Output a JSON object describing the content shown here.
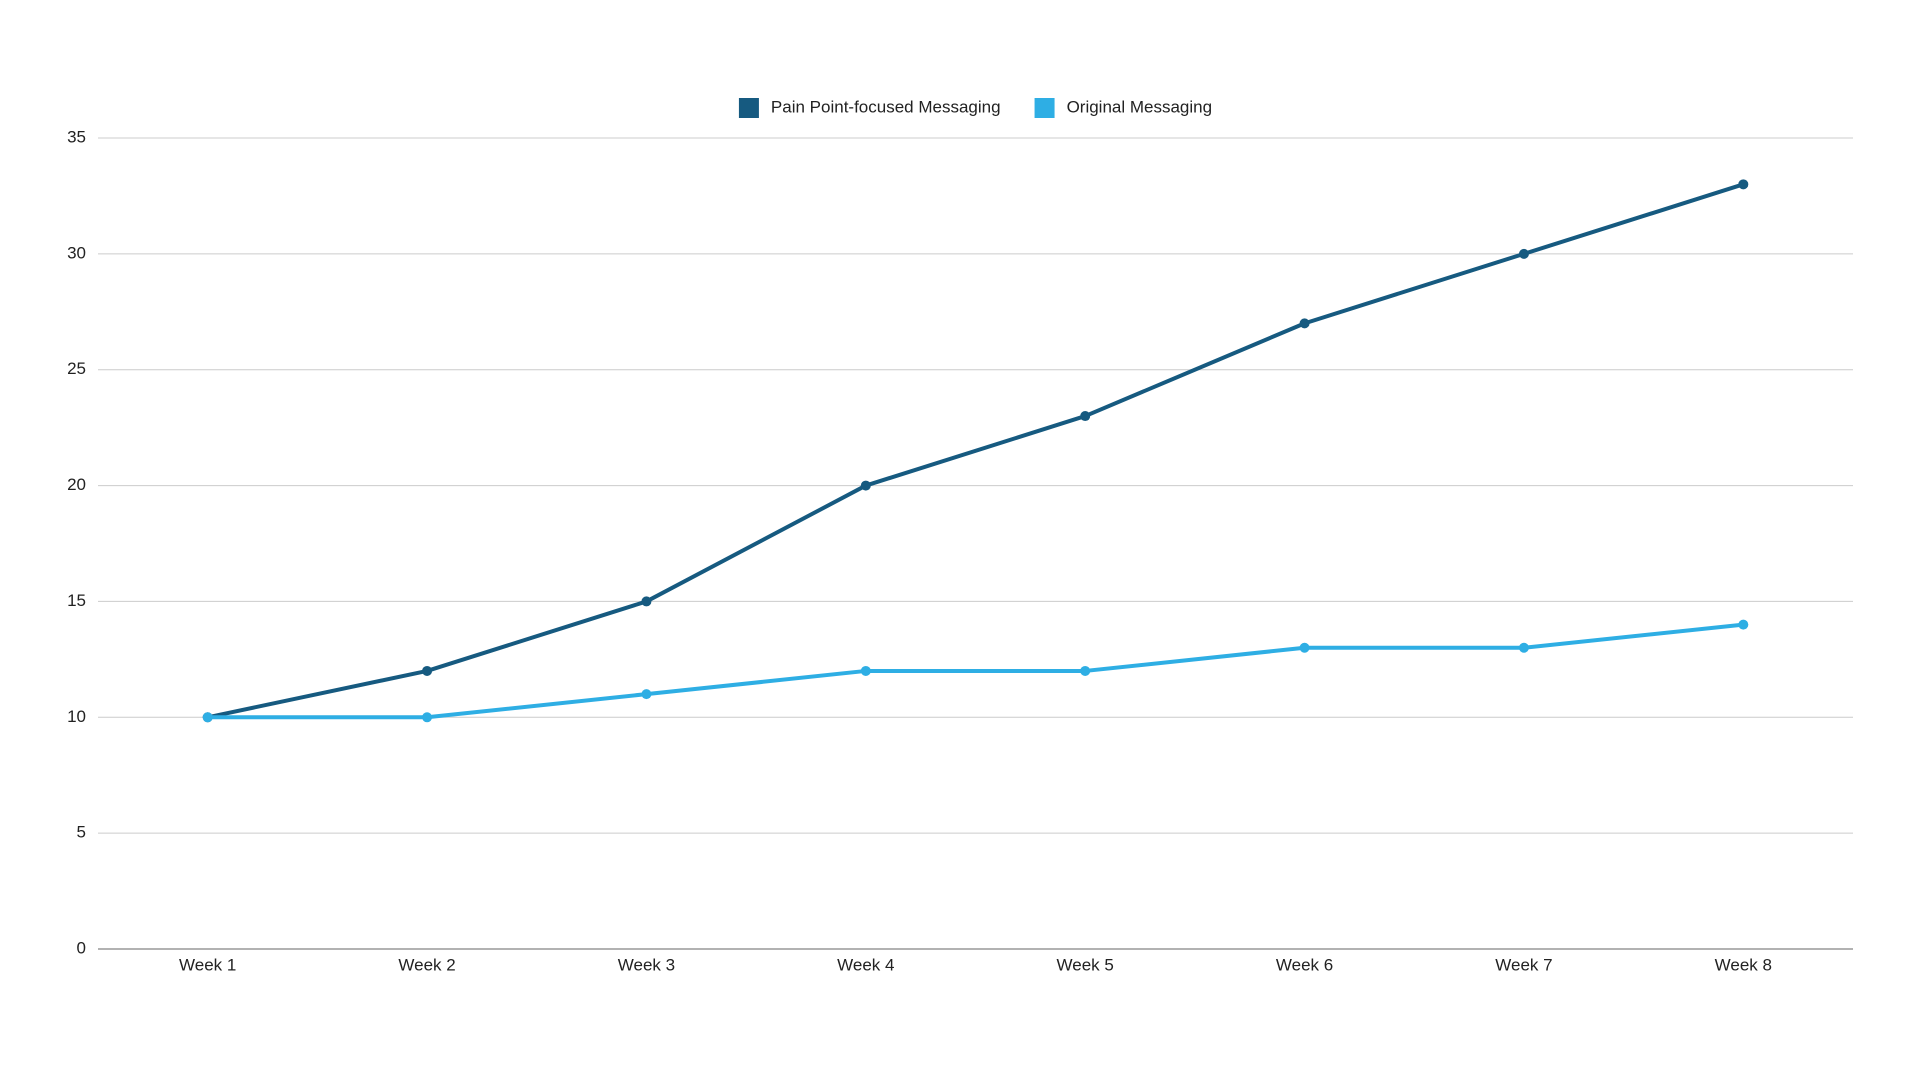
{
  "chart_data": {
    "type": "line",
    "categories": [
      "Week 1",
      "Week 2",
      "Week 3",
      "Week 4",
      "Week 5",
      "Week 6",
      "Week 7",
      "Week 8"
    ],
    "series": [
      {
        "name": "Pain Point-focused Messaging",
        "color": "#165a80",
        "values": [
          10,
          12,
          15,
          20,
          23,
          27,
          30,
          33
        ]
      },
      {
        "name": "Original Messaging",
        "color": "#2eaee4",
        "values": [
          10,
          10,
          11,
          12,
          12,
          13,
          13,
          14
        ]
      }
    ],
    "ylim": [
      0,
      35
    ],
    "yticks": [
      0,
      5,
      10,
      15,
      20,
      25,
      30,
      35
    ],
    "grid": true,
    "legend": "top"
  }
}
